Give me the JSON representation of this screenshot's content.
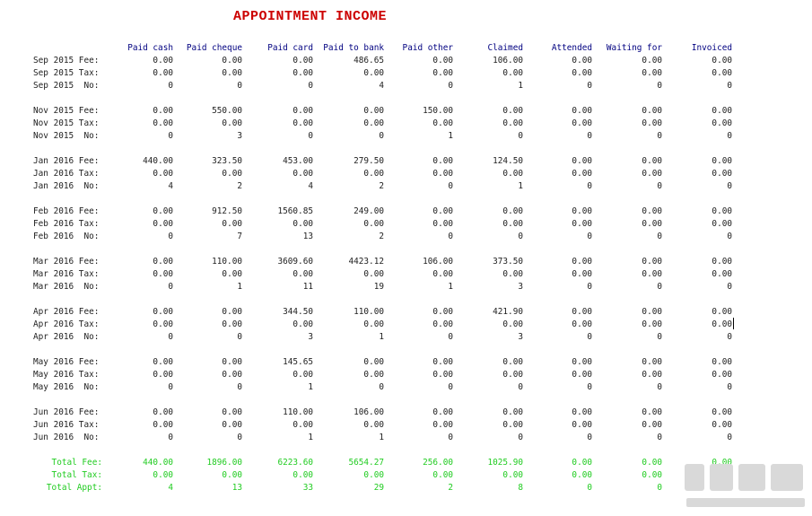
{
  "title": "APPOINTMENT INCOME",
  "columns": [
    "Paid cash",
    "Paid cheque",
    "Paid card",
    "Paid to bank",
    "Paid other",
    "Claimed",
    "Attended",
    "Waiting for",
    "Invoiced"
  ],
  "rows": [
    {
      "label": "Sep 2015 Fee:",
      "values": [
        "0.00",
        "0.00",
        "0.00",
        "486.65",
        "0.00",
        "106.00",
        "0.00",
        "0.00",
        "0.00"
      ]
    },
    {
      "label": "Sep 2015 Tax:",
      "values": [
        "0.00",
        "0.00",
        "0.00",
        "0.00",
        "0.00",
        "0.00",
        "0.00",
        "0.00",
        "0.00"
      ]
    },
    {
      "label": "Sep 2015  No:",
      "values": [
        "0",
        "0",
        "0",
        "4",
        "0",
        "1",
        "0",
        "0",
        "0"
      ]
    },
    {
      "label": "Nov 2015 Fee:",
      "values": [
        "0.00",
        "550.00",
        "0.00",
        "0.00",
        "150.00",
        "0.00",
        "0.00",
        "0.00",
        "0.00"
      ]
    },
    {
      "label": "Nov 2015 Tax:",
      "values": [
        "0.00",
        "0.00",
        "0.00",
        "0.00",
        "0.00",
        "0.00",
        "0.00",
        "0.00",
        "0.00"
      ]
    },
    {
      "label": "Nov 2015  No:",
      "values": [
        "0",
        "3",
        "0",
        "0",
        "1",
        "0",
        "0",
        "0",
        "0"
      ]
    },
    {
      "label": "Jan 2016 Fee:",
      "values": [
        "440.00",
        "323.50",
        "453.00",
        "279.50",
        "0.00",
        "124.50",
        "0.00",
        "0.00",
        "0.00"
      ]
    },
    {
      "label": "Jan 2016 Tax:",
      "values": [
        "0.00",
        "0.00",
        "0.00",
        "0.00",
        "0.00",
        "0.00",
        "0.00",
        "0.00",
        "0.00"
      ]
    },
    {
      "label": "Jan 2016  No:",
      "values": [
        "4",
        "2",
        "4",
        "2",
        "0",
        "1",
        "0",
        "0",
        "0"
      ]
    },
    {
      "label": "Feb 2016 Fee:",
      "values": [
        "0.00",
        "912.50",
        "1560.85",
        "249.00",
        "0.00",
        "0.00",
        "0.00",
        "0.00",
        "0.00"
      ]
    },
    {
      "label": "Feb 2016 Tax:",
      "values": [
        "0.00",
        "0.00",
        "0.00",
        "0.00",
        "0.00",
        "0.00",
        "0.00",
        "0.00",
        "0.00"
      ]
    },
    {
      "label": "Feb 2016  No:",
      "values": [
        "0",
        "7",
        "13",
        "2",
        "0",
        "0",
        "0",
        "0",
        "0"
      ]
    },
    {
      "label": "Mar 2016 Fee:",
      "values": [
        "0.00",
        "110.00",
        "3609.60",
        "4423.12",
        "106.00",
        "373.50",
        "0.00",
        "0.00",
        "0.00"
      ]
    },
    {
      "label": "Mar 2016 Tax:",
      "values": [
        "0.00",
        "0.00",
        "0.00",
        "0.00",
        "0.00",
        "0.00",
        "0.00",
        "0.00",
        "0.00"
      ]
    },
    {
      "label": "Mar 2016  No:",
      "values": [
        "0",
        "1",
        "11",
        "19",
        "1",
        "3",
        "0",
        "0",
        "0"
      ]
    },
    {
      "label": "Apr 2016 Fee:",
      "values": [
        "0.00",
        "0.00",
        "344.50",
        "110.00",
        "0.00",
        "421.90",
        "0.00",
        "0.00",
        "0.00"
      ]
    },
    {
      "label": "Apr 2016 Tax:",
      "values": [
        "0.00",
        "0.00",
        "0.00",
        "0.00",
        "0.00",
        "0.00",
        "0.00",
        "0.00",
        "0.00"
      ]
    },
    {
      "label": "Apr 2016  No:",
      "values": [
        "0",
        "0",
        "3",
        "1",
        "0",
        "3",
        "0",
        "0",
        "0"
      ]
    },
    {
      "label": "May 2016 Fee:",
      "values": [
        "0.00",
        "0.00",
        "145.65",
        "0.00",
        "0.00",
        "0.00",
        "0.00",
        "0.00",
        "0.00"
      ]
    },
    {
      "label": "May 2016 Tax:",
      "values": [
        "0.00",
        "0.00",
        "0.00",
        "0.00",
        "0.00",
        "0.00",
        "0.00",
        "0.00",
        "0.00"
      ]
    },
    {
      "label": "May 2016  No:",
      "values": [
        "0",
        "0",
        "1",
        "0",
        "0",
        "0",
        "0",
        "0",
        "0"
      ]
    },
    {
      "label": "Jun 2016 Fee:",
      "values": [
        "0.00",
        "0.00",
        "110.00",
        "106.00",
        "0.00",
        "0.00",
        "0.00",
        "0.00",
        "0.00"
      ]
    },
    {
      "label": "Jun 2016 Tax:",
      "values": [
        "0.00",
        "0.00",
        "0.00",
        "0.00",
        "0.00",
        "0.00",
        "0.00",
        "0.00",
        "0.00"
      ]
    },
    {
      "label": "Jun 2016  No:",
      "values": [
        "0",
        "0",
        "1",
        "1",
        "0",
        "0",
        "0",
        "0",
        "0"
      ]
    }
  ],
  "totals": [
    {
      "label": "Total Fee:",
      "values": [
        "440.00",
        "1896.00",
        "6223.60",
        "5654.27",
        "256.00",
        "1025.90",
        "0.00",
        "0.00",
        "0.00"
      ]
    },
    {
      "label": "Total Tax:",
      "values": [
        "0.00",
        "0.00",
        "0.00",
        "0.00",
        "0.00",
        "0.00",
        "0.00",
        "0.00",
        "0.00"
      ]
    },
    {
      "label": "Total Appt:",
      "values": [
        "4",
        "13",
        "33",
        "29",
        "2",
        "8",
        "0",
        "0",
        "0"
      ]
    }
  ],
  "colors": {
    "title": "#cc0000",
    "header": "#000080",
    "totals": "#22cc22",
    "text": "#222222"
  }
}
